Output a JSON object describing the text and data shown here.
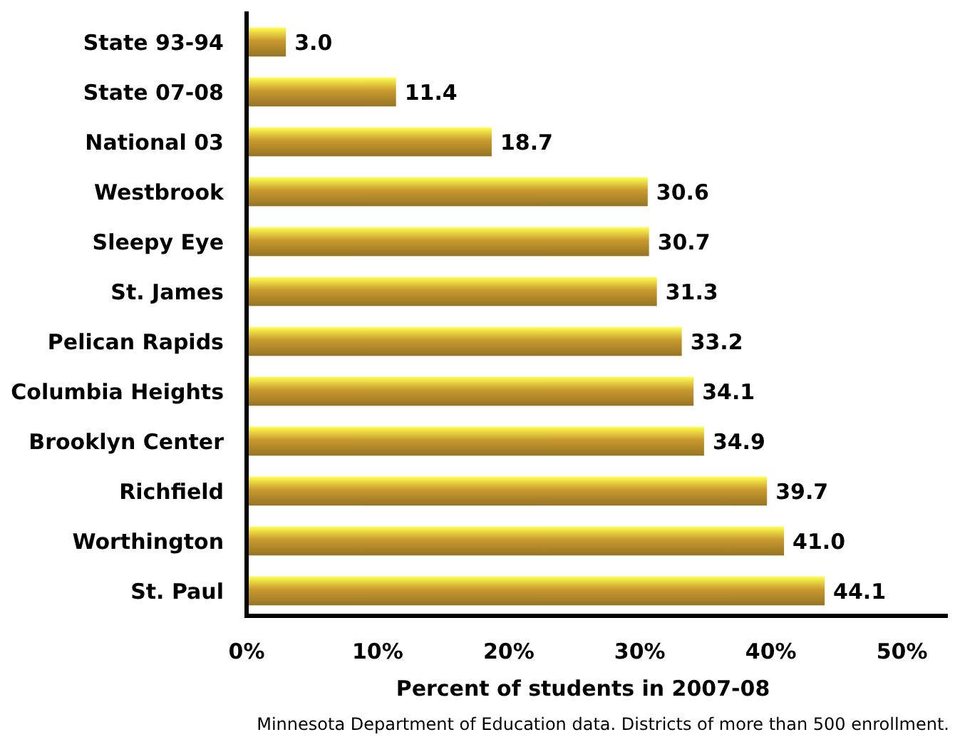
{
  "chart_data": {
    "type": "bar",
    "orientation": "horizontal",
    "xlabel": "Percent of students in 2007-08",
    "categories": [
      "State 93-94",
      "State 07-08",
      "National 03",
      "Westbrook",
      "Sleepy Eye",
      "St. James",
      "Pelican Rapids",
      "Columbia Heights",
      "Brooklyn Center",
      "Richfield",
      "Worthington",
      "St. Paul"
    ],
    "values": [
      3.0,
      11.4,
      18.7,
      30.6,
      30.7,
      31.3,
      33.2,
      34.1,
      34.9,
      39.7,
      41.0,
      44.1
    ],
    "value_labels": [
      "3.0",
      "11.4",
      "18.7",
      "30.6",
      "30.7",
      "31.3",
      "33.2",
      "34.1",
      "34.9",
      "39.7",
      "41.0",
      "44.1"
    ],
    "color": "#c99a2e",
    "grid": false,
    "xlim": [
      0,
      53.5
    ],
    "xticks": [
      {
        "value": 0,
        "label": "0%"
      },
      {
        "value": 10,
        "label": "10%"
      },
      {
        "value": 20,
        "label": "20%"
      },
      {
        "value": 30,
        "label": "30%"
      },
      {
        "value": 40,
        "label": "40%"
      },
      {
        "value": 50,
        "label": "50%"
      }
    ],
    "annotations": [
      "Minnesota Department of Education data. Districts of more than 500 enrollment."
    ]
  }
}
